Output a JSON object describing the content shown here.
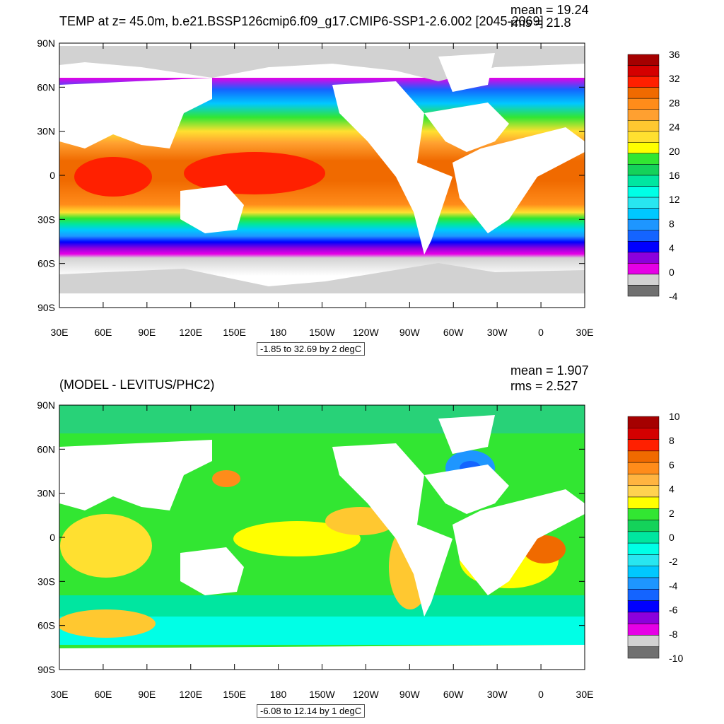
{
  "chart_data": [
    {
      "type": "heatmap",
      "title": "TEMP at z=  45.0m, b.e21.BSSP126cmip6.f09_g17.CMIP6-SSP1-2.6.002 [2045-2069]",
      "mean_label": "mean = 19.24",
      "rms_label": "rms = 21.8",
      "range_label": "-1.85 to 32.69 by 2 degC",
      "x_ticks": [
        "30E",
        "60E",
        "90E",
        "120E",
        "150E",
        "180",
        "150W",
        "120W",
        "90W",
        "60W",
        "30W",
        "0",
        "30E"
      ],
      "y_ticks": [
        "90N",
        "60N",
        "30N",
        "0",
        "30S",
        "60S",
        "90S"
      ],
      "colorbar": {
        "labels": [
          "36",
          "32",
          "28",
          "24",
          "20",
          "16",
          "12",
          "8",
          "4",
          "0",
          "-4"
        ],
        "colors": [
          "#a50000",
          "#d40000",
          "#ff2000",
          "#f06a00",
          "#ff8c1a",
          "#ffa030",
          "#ffc830",
          "#ffe030",
          "#ffff00",
          "#32e632",
          "#14d25a",
          "#00e6a0",
          "#00ffe6",
          "#28e6f0",
          "#00c8ff",
          "#1e96ff",
          "#1464ff",
          "#0000ff",
          "#8c00dc",
          "#e600e6",
          "#d2d2d2",
          "#707070"
        ]
      }
    },
    {
      "type": "heatmap",
      "title": "(MODEL - LEVITUS/PHC2)",
      "mean_label": "mean = 1.907",
      "rms_label": "rms = 2.527",
      "range_label": "-6.08 to 12.14 by 1 degC",
      "x_ticks": [
        "30E",
        "60E",
        "90E",
        "120E",
        "150E",
        "180",
        "150W",
        "120W",
        "90W",
        "60W",
        "30W",
        "0",
        "30E"
      ],
      "y_ticks": [
        "90N",
        "60N",
        "30N",
        "0",
        "30S",
        "60S",
        "90S"
      ],
      "colorbar": {
        "labels": [
          "10",
          "8",
          "6",
          "4",
          "2",
          "0",
          "-2",
          "-4",
          "-6",
          "-8",
          "-10"
        ],
        "colors": [
          "#a50000",
          "#d40000",
          "#ff2000",
          "#f06a00",
          "#ff8c1a",
          "#ffb440",
          "#ffd250",
          "#ffff00",
          "#32e632",
          "#14d25a",
          "#00e6a0",
          "#00ffe6",
          "#28e6f0",
          "#00c8ff",
          "#1e96ff",
          "#1464ff",
          "#0000ff",
          "#8c00dc",
          "#e600e6",
          "#d2d2d2",
          "#707070"
        ]
      }
    }
  ]
}
